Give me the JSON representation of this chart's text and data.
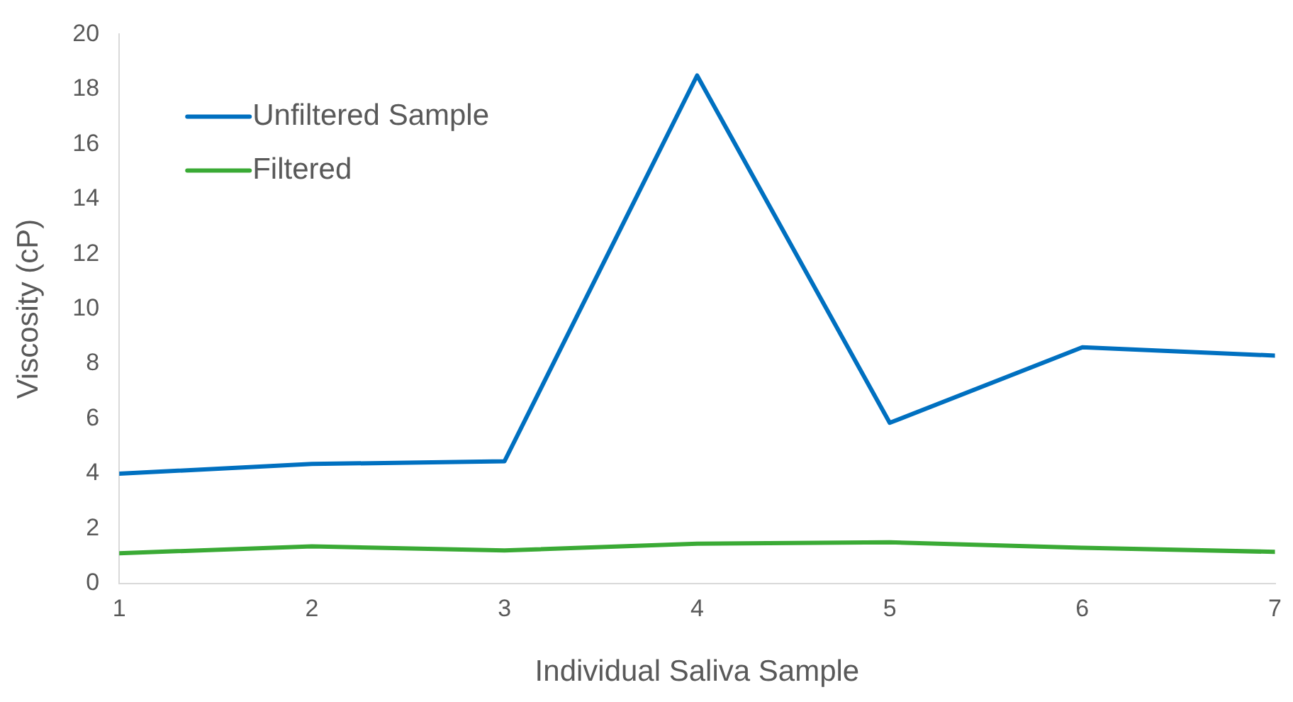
{
  "chart_data": {
    "type": "line",
    "xlabel": "Individual Saliva Sample",
    "ylabel": "Viscosity (cP)",
    "x": [
      1,
      2,
      3,
      4,
      5,
      6,
      7
    ],
    "series": [
      {
        "name": "Unfiltered Sample",
        "color": "#0070c0",
        "values": [
          4.0,
          4.35,
          4.45,
          18.5,
          5.85,
          8.6,
          8.3
        ]
      },
      {
        "name": "Filtered",
        "color": "#3aaa35",
        "values": [
          1.1,
          1.35,
          1.2,
          1.45,
          1.5,
          1.3,
          1.15
        ]
      }
    ],
    "xlim": [
      1,
      7
    ],
    "xticks": [
      1,
      2,
      3,
      4,
      5,
      6,
      7
    ],
    "ylim": [
      0,
      20
    ],
    "yticks": [
      0,
      2,
      4,
      6,
      8,
      10,
      12,
      14,
      16,
      18,
      20
    ],
    "grid": false,
    "legend": "top left",
    "marker": "none",
    "line_style": "solid"
  }
}
